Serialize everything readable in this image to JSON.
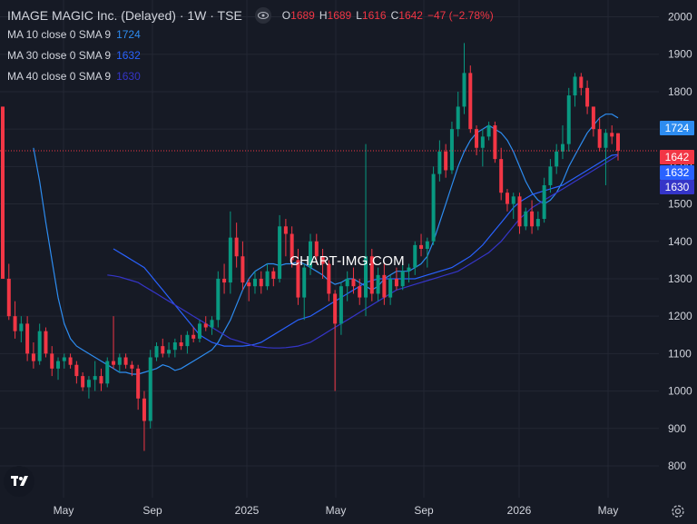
{
  "header": {
    "title": "IMAGE MAGIC Inc. (Delayed) · 1W · TSE",
    "ohlc": {
      "o_label": "O",
      "o_value": "1689",
      "h_label": "H",
      "h_value": "1689",
      "l_label": "L",
      "l_value": "1616",
      "c_label": "C",
      "c_value": "1642",
      "change": "−47 (−2.78%)"
    }
  },
  "indicators": [
    {
      "label": "MA 10 close 0 SMA 9",
      "value": "1724",
      "color": "#2d8cf0"
    },
    {
      "label": "MA 30 close 0 SMA 9",
      "value": "1632",
      "color": "#2962ff"
    },
    {
      "label": "MA 40 close 0 SMA 9",
      "value": "1630",
      "color": "#3535c8"
    }
  ],
  "watermark": "CHART-IMG.COM",
  "colors": {
    "up": "#089981",
    "down": "#f23645",
    "background": "#161a25",
    "grid": "#232733"
  },
  "chart_data": {
    "type": "candlestick",
    "x_tick_labels": [
      "May",
      "Sep",
      "2025",
      "May",
      "Sep",
      "2026",
      "May"
    ],
    "y_ticks": [
      800,
      900,
      1000,
      1100,
      1200,
      1300,
      1400,
      1500,
      1600,
      1700,
      1800,
      1900,
      2000
    ],
    "ylim": [
      715,
      2045
    ],
    "last_price": 1642,
    "price_labels": [
      {
        "text": "1724",
        "value": 1724,
        "color": "#2d8cf0"
      },
      {
        "text": "1642",
        "value": 1642,
        "color": "#f23645"
      },
      {
        "text": "1632",
        "value": 1632,
        "color": "#2962ff"
      },
      {
        "text": "1630",
        "value": 1630,
        "color": "#3535c8"
      }
    ],
    "candles": [
      [
        1760,
        1760,
        1300,
        1300
      ],
      [
        1300,
        1340,
        1190,
        1200
      ],
      [
        1200,
        1240,
        1140,
        1160
      ],
      [
        1160,
        1200,
        1130,
        1180
      ],
      [
        1180,
        1200,
        1080,
        1100
      ],
      [
        1100,
        1130,
        1060,
        1080
      ],
      [
        1080,
        1180,
        1070,
        1160
      ],
      [
        1160,
        1170,
        1090,
        1100
      ],
      [
        1100,
        1120,
        1040,
        1060
      ],
      [
        1060,
        1090,
        1030,
        1080
      ],
      [
        1080,
        1100,
        1060,
        1090
      ],
      [
        1090,
        1100,
        1060,
        1070
      ],
      [
        1070,
        1080,
        1020,
        1040
      ],
      [
        1040,
        1050,
        1000,
        1010
      ],
      [
        1010,
        1040,
        980,
        1030
      ],
      [
        1030,
        1080,
        1000,
        1040
      ],
      [
        1040,
        1060,
        1000,
        1020
      ],
      [
        1020,
        1090,
        1010,
        1080
      ],
      [
        1080,
        1200,
        1060,
        1070
      ],
      [
        1070,
        1100,
        1050,
        1090
      ],
      [
        1090,
        1100,
        1060,
        1070
      ],
      [
        1070,
        1080,
        1040,
        1060
      ],
      [
        1060,
        1070,
        950,
        980
      ],
      [
        980,
        1000,
        840,
        920
      ],
      [
        920,
        1110,
        900,
        1090
      ],
      [
        1090,
        1130,
        1080,
        1120
      ],
      [
        1120,
        1140,
        1090,
        1100
      ],
      [
        1100,
        1130,
        1090,
        1110
      ],
      [
        1110,
        1140,
        1090,
        1130
      ],
      [
        1130,
        1150,
        1110,
        1120
      ],
      [
        1120,
        1160,
        1100,
        1150
      ],
      [
        1150,
        1170,
        1130,
        1140
      ],
      [
        1140,
        1190,
        1130,
        1180
      ],
      [
        1180,
        1200,
        1160,
        1170
      ],
      [
        1170,
        1200,
        1150,
        1190
      ],
      [
        1190,
        1320,
        1170,
        1300
      ],
      [
        1300,
        1340,
        1260,
        1290
      ],
      [
        1290,
        1480,
        1260,
        1410
      ],
      [
        1410,
        1450,
        1330,
        1360
      ],
      [
        1360,
        1400,
        1270,
        1290
      ],
      [
        1290,
        1300,
        1240,
        1280
      ],
      [
        1280,
        1320,
        1260,
        1300
      ],
      [
        1300,
        1320,
        1260,
        1280
      ],
      [
        1280,
        1340,
        1270,
        1320
      ],
      [
        1320,
        1330,
        1280,
        1300
      ],
      [
        1300,
        1470,
        1290,
        1440
      ],
      [
        1440,
        1460,
        1360,
        1420
      ],
      [
        1420,
        1440,
        1330,
        1350
      ],
      [
        1350,
        1380,
        1230,
        1250
      ],
      [
        1250,
        1340,
        1190,
        1330
      ],
      [
        1330,
        1420,
        1310,
        1400
      ],
      [
        1400,
        1420,
        1340,
        1360
      ],
      [
        1360,
        1380,
        1300,
        1340
      ],
      [
        1340,
        1350,
        1240,
        1260
      ],
      [
        1260,
        1270,
        1000,
        1180
      ],
      [
        1180,
        1290,
        1150,
        1280
      ],
      [
        1280,
        1320,
        1240,
        1300
      ],
      [
        1300,
        1330,
        1260,
        1280
      ],
      [
        1280,
        1300,
        1230,
        1250
      ],
      [
        1250,
        1660,
        1200,
        1360
      ],
      [
        1360,
        1380,
        1240,
        1260
      ],
      [
        1260,
        1330,
        1240,
        1310
      ],
      [
        1310,
        1340,
        1230,
        1250
      ],
      [
        1250,
        1310,
        1230,
        1300
      ],
      [
        1300,
        1330,
        1270,
        1280
      ],
      [
        1280,
        1340,
        1270,
        1320
      ],
      [
        1320,
        1340,
        1290,
        1330
      ],
      [
        1330,
        1400,
        1310,
        1390
      ],
      [
        1390,
        1420,
        1360,
        1380
      ],
      [
        1380,
        1410,
        1330,
        1400
      ],
      [
        1400,
        1600,
        1390,
        1580
      ],
      [
        1580,
        1670,
        1560,
        1640
      ],
      [
        1640,
        1660,
        1570,
        1590
      ],
      [
        1590,
        1720,
        1580,
        1700
      ],
      [
        1700,
        1800,
        1680,
        1760
      ],
      [
        1760,
        1930,
        1740,
        1850
      ],
      [
        1850,
        1870,
        1690,
        1700
      ],
      [
        1700,
        1710,
        1630,
        1650
      ],
      [
        1650,
        1700,
        1600,
        1680
      ],
      [
        1680,
        1720,
        1670,
        1710
      ],
      [
        1710,
        1720,
        1610,
        1620
      ],
      [
        1620,
        1650,
        1510,
        1530
      ],
      [
        1530,
        1540,
        1480,
        1500
      ],
      [
        1500,
        1530,
        1460,
        1520
      ],
      [
        1520,
        1530,
        1420,
        1440
      ],
      [
        1440,
        1490,
        1430,
        1480
      ],
      [
        1480,
        1510,
        1420,
        1440
      ],
      [
        1440,
        1480,
        1430,
        1460
      ],
      [
        1460,
        1570,
        1450,
        1550
      ],
      [
        1550,
        1620,
        1530,
        1600
      ],
      [
        1600,
        1660,
        1580,
        1640
      ],
      [
        1640,
        1710,
        1620,
        1660
      ],
      [
        1660,
        1810,
        1640,
        1790
      ],
      [
        1790,
        1850,
        1760,
        1840
      ],
      [
        1840,
        1850,
        1790,
        1810
      ],
      [
        1810,
        1830,
        1740,
        1760
      ],
      [
        1760,
        1760,
        1680,
        1700
      ],
      [
        1700,
        1730,
        1640,
        1650
      ],
      [
        1650,
        1700,
        1550,
        1690
      ],
      [
        1690,
        1710,
        1660,
        1680
      ],
      [
        1689,
        1689,
        1616,
        1642
      ]
    ],
    "series": [
      {
        "name": "MA 10 close 0 SMA 9",
        "color": "#2d8cf0",
        "values": [
          1650,
          1560,
          1450,
          1350,
          1250,
          1180,
          1140,
          1120,
          1110,
          1100,
          1090,
          1080,
          1070,
          1060,
          1050,
          1050,
          1045,
          1045,
          1050,
          1055,
          1060,
          1070,
          1065,
          1055,
          1060,
          1070,
          1080,
          1090,
          1100,
          1110,
          1130,
          1160,
          1190,
          1230,
          1270,
          1300,
          1320,
          1330,
          1340,
          1340,
          1335,
          1340,
          1340,
          1345,
          1340,
          1330,
          1320,
          1310,
          1295,
          1285,
          1290,
          1300,
          1300,
          1290,
          1280,
          1270,
          1280,
          1300,
          1310,
          1320,
          1320,
          1320,
          1330,
          1340,
          1360,
          1400,
          1450,
          1500,
          1550,
          1600,
          1640,
          1670,
          1690,
          1700,
          1710,
          1700,
          1690,
          1670,
          1640,
          1600,
          1560,
          1530,
          1510,
          1500,
          1510,
          1530,
          1560,
          1600,
          1630,
          1660,
          1690,
          1710,
          1730,
          1740,
          1740,
          1730
        ]
      },
      {
        "name": "MA 30 close 0 SMA 9",
        "color": "#2962ff",
        "values": [
          1380,
          1370,
          1360,
          1350,
          1340,
          1330,
          1310,
          1290,
          1270,
          1250,
          1230,
          1210,
          1190,
          1170,
          1150,
          1140,
          1130,
          1125,
          1120,
          1120,
          1120,
          1120,
          1122,
          1125,
          1130,
          1140,
          1150,
          1160,
          1170,
          1180,
          1190,
          1195,
          1200,
          1210,
          1220,
          1230,
          1240,
          1250,
          1260,
          1270,
          1280,
          1290,
          1295,
          1300,
          1300,
          1300,
          1300,
          1300,
          1300,
          1300,
          1305,
          1310,
          1315,
          1320,
          1325,
          1330,
          1340,
          1350,
          1360,
          1375,
          1390,
          1410,
          1430,
          1450,
          1470,
          1490,
          1505,
          1515,
          1525,
          1530,
          1535,
          1540,
          1545,
          1550,
          1560,
          1570,
          1580,
          1590,
          1600,
          1610,
          1620,
          1630,
          1632
        ]
      },
      {
        "name": "MA 40 close 0 SMA 9",
        "color": "#3535c8",
        "values": [
          1310,
          1308,
          1305,
          1300,
          1295,
          1290,
          1280,
          1270,
          1260,
          1250,
          1240,
          1230,
          1220,
          1210,
          1200,
          1190,
          1180,
          1170,
          1160,
          1150,
          1140,
          1135,
          1130,
          1125,
          1120,
          1118,
          1116,
          1115,
          1115,
          1116,
          1118,
          1120,
          1125,
          1130,
          1140,
          1150,
          1160,
          1170,
          1180,
          1190,
          1200,
          1210,
          1220,
          1230,
          1240,
          1250,
          1260,
          1270,
          1275,
          1280,
          1285,
          1290,
          1295,
          1300,
          1305,
          1310,
          1315,
          1320,
          1330,
          1340,
          1350,
          1360,
          1370,
          1385,
          1400,
          1420,
          1440,
          1460,
          1475,
          1490,
          1500,
          1510,
          1520,
          1530,
          1540,
          1550,
          1560,
          1570,
          1580,
          1590,
          1600,
          1610,
          1620,
          1630
        ]
      }
    ]
  }
}
